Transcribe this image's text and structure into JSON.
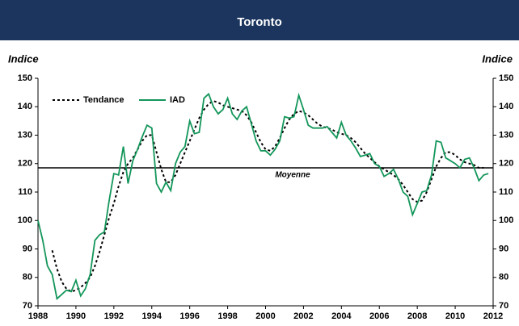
{
  "chart_data": {
    "type": "line",
    "title": "Toronto",
    "ylabel": "Indice",
    "y2label": "Indice",
    "xlim": [
      1988,
      2012
    ],
    "xticks": [
      1988,
      1990,
      1992,
      1994,
      1996,
      1998,
      2000,
      2002,
      2004,
      2006,
      2008,
      2010,
      2012
    ],
    "ylim": [
      70,
      150
    ],
    "yticks": [
      70,
      80,
      90,
      100,
      110,
      120,
      130,
      140,
      150
    ],
    "y2lim": [
      70,
      150
    ],
    "y2ticks": [
      70,
      80,
      90,
      100,
      110,
      120,
      130,
      140,
      150
    ],
    "legend": "upper left",
    "average": {
      "label": "Moyenne",
      "value": 118.5,
      "color": "#000000"
    },
    "x": [
      1988,
      1988.25,
      1988.5,
      1988.75,
      1989,
      1989.25,
      1989.5,
      1989.75,
      1990,
      1990.25,
      1990.5,
      1990.75,
      1991,
      1991.25,
      1991.5,
      1991.75,
      1992,
      1992.25,
      1992.5,
      1992.75,
      1993,
      1993.25,
      1993.5,
      1993.75,
      1994,
      1994.25,
      1994.5,
      1994.75,
      1995,
      1995.25,
      1995.5,
      1995.75,
      1996,
      1996.25,
      1996.5,
      1996.75,
      1997,
      1997.25,
      1997.5,
      1997.75,
      1998,
      1998.25,
      1998.5,
      1998.75,
      1999,
      1999.25,
      1999.5,
      1999.75,
      2000,
      2000.25,
      2000.5,
      2000.75,
      2001,
      2001.25,
      2001.5,
      2001.75,
      2002,
      2002.25,
      2002.5,
      2002.75,
      2003,
      2003.25,
      2003.5,
      2003.75,
      2004,
      2004.25,
      2004.5,
      2004.75,
      2005,
      2005.25,
      2005.5,
      2005.75,
      2006,
      2006.25,
      2006.5,
      2006.75,
      2007,
      2007.25,
      2007.5,
      2007.75,
      2008,
      2008.25,
      2008.5,
      2008.75,
      2009,
      2009.25,
      2009.5,
      2009.75,
      2010,
      2010.25,
      2010.5,
      2010.75,
      2011,
      2011.25,
      2011.5,
      2011.75
    ],
    "series": [
      {
        "name": "Tendance",
        "color": "#000000",
        "dashed": true,
        "values": [
          null,
          null,
          null,
          89.5,
          83,
          78.5,
          76,
          75,
          75.5,
          76.5,
          78,
          80,
          84,
          89,
          95,
          101,
          106,
          112,
          117,
          120,
          122,
          125,
          128,
          130,
          130,
          124,
          118,
          113.5,
          113.5,
          116,
          120,
          124,
          128,
          132,
          136,
          139,
          141,
          142,
          141.5,
          140.5,
          140,
          139.5,
          139,
          138.5,
          137,
          134.5,
          131,
          127.5,
          125,
          124.5,
          126,
          129,
          132.5,
          135.5,
          137.5,
          138.5,
          138,
          137,
          135.5,
          134,
          133,
          132.5,
          132,
          131,
          130.5,
          130,
          129,
          127.5,
          125.5,
          123.5,
          122,
          120.5,
          119,
          118,
          117,
          116,
          114.5,
          112.5,
          110,
          107.5,
          106.5,
          107,
          110,
          114.5,
          119,
          122,
          124,
          124,
          123,
          121.5,
          120.5,
          120,
          119.5,
          118.5,
          118.5,
          null
        ]
      },
      {
        "name": "IAD",
        "color": "#13965a",
        "dashed": false,
        "values": [
          100,
          93,
          84,
          81,
          72.5,
          74,
          75.5,
          75,
          79,
          73.5,
          76,
          81,
          93,
          95,
          96,
          107,
          116.5,
          116,
          126,
          113,
          121,
          125,
          129.5,
          133.5,
          132.5,
          113,
          110,
          113.5,
          110.5,
          120,
          124,
          126,
          135,
          130.5,
          131,
          143,
          144.5,
          140,
          137.5,
          139,
          143,
          137.5,
          135.5,
          138.5,
          140,
          134,
          128,
          124.5,
          124.5,
          123,
          125,
          128,
          136.5,
          136,
          136.5,
          144,
          139,
          133.5,
          132.5,
          132.5,
          132.5,
          133,
          131,
          129,
          134.5,
          130,
          128,
          125.5,
          122.5,
          123,
          123.5,
          120,
          119,
          115.5,
          116.5,
          118,
          114.5,
          110,
          108.5,
          102,
          106,
          110,
          110.5,
          116,
          128,
          127.5,
          122,
          121,
          120,
          118.5,
          121.5,
          122,
          118.5,
          114,
          116,
          116.5
        ]
      }
    ]
  }
}
